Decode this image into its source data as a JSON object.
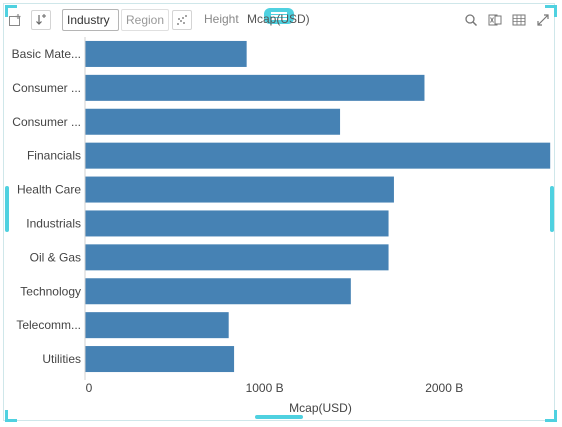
{
  "toolbar": {
    "dimensions": [
      {
        "label": "Industry",
        "active": true
      },
      {
        "label": "Region",
        "active": false
      }
    ],
    "size_label": "Height",
    "size_field": "Mcap(USD)",
    "icons": [
      "add-filter-icon",
      "sort-icon",
      "scatter-toggle-icon",
      "search-icon",
      "export-excel-icon",
      "table-view-icon",
      "expand-icon"
    ]
  },
  "colors": {
    "bar": "#4682b4",
    "accent": "#4fd1e0",
    "axis_text": "#444444",
    "border": "#cfe7ea"
  },
  "chart_data": {
    "type": "bar",
    "orientation": "horizontal",
    "categories": [
      "Basic Mate...",
      "Consumer ...",
      "Consumer ...",
      "Financials",
      "Health Care",
      "Industrials",
      "Oil & Gas",
      "Technology",
      "Telecomm...",
      "Utilities"
    ],
    "values": [
      900,
      1890,
      1420,
      2590,
      1720,
      1690,
      1690,
      1480,
      800,
      830
    ],
    "xlabel": "Mcap(USD)",
    "ylabel": "",
    "xlim": [
      0,
      2600
    ],
    "x_ticks": [
      {
        "value": 0,
        "label": "0"
      },
      {
        "value": 1000,
        "label": "1000 B"
      },
      {
        "value": 2000,
        "label": "2000 B"
      }
    ],
    "grid": false,
    "legend": "none"
  }
}
